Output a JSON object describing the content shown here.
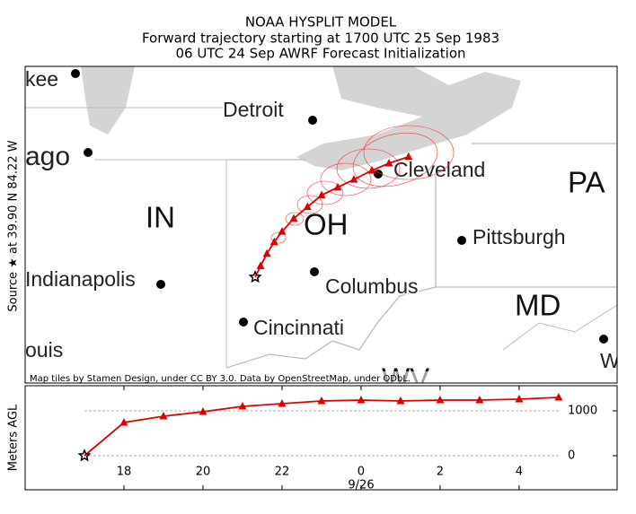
{
  "chart_data": [
    {
      "type": "map",
      "title": [
        "NOAA HYSPLIT MODEL",
        "Forward trajectory starting at 1700 UTC 25 Sep 1983",
        "06 UTC 24 Sep  AWRF  Forecast Initialization"
      ],
      "source_label": "Source ★ at  39.90 N   84.22 W",
      "attribution": "Map tiles by Stamen Design, under CC BY 3.0. Data by OpenStreetMap, under ODbL.",
      "cities": [
        "kee",
        "ago",
        "Detroit",
        "Cleveland",
        "Pittsburgh",
        "Indianapolis",
        "Columbus",
        "Cincinnati",
        "ouis",
        "W"
      ],
      "states": [
        "IN",
        "OH",
        "PA",
        "MD",
        "WV"
      ],
      "xlim": [
        -88.93,
        -76.81
      ],
      "ylim": [
        38.27,
        43.14
      ],
      "lon": [
        -84.22,
        -84.11,
        -83.98,
        -83.83,
        -83.67,
        -83.43,
        -83.15,
        -82.86,
        -82.53,
        -82.2,
        -81.83,
        -81.48,
        -81.08
      ],
      "lat": [
        39.9,
        40.07,
        40.26,
        40.44,
        40.6,
        40.8,
        40.98,
        41.16,
        41.28,
        41.4,
        41.54,
        41.65,
        41.75
      ],
      "color": "#e00000"
    },
    {
      "type": "line",
      "ylabel": "Meters AGL",
      "date_label": "9/26",
      "x": [
        17,
        18,
        19,
        20,
        21,
        22,
        23,
        24,
        25,
        26,
        27,
        28,
        29
      ],
      "values": [
        0,
        740,
        880,
        980,
        1100,
        1160,
        1220,
        1240,
        1220,
        1240,
        1240,
        1260,
        1300
      ],
      "xlim": [
        15.5,
        30.48
      ],
      "ylim": [
        -760,
        1560
      ],
      "xticks": [
        18,
        20,
        22,
        {
          "value": 24,
          "label": "0"
        },
        {
          "value": 26,
          "label": "2"
        },
        {
          "value": 28,
          "label": "4"
        }
      ],
      "yticks": [
        0,
        1000
      ],
      "grid": true,
      "color": "#e00000"
    }
  ]
}
